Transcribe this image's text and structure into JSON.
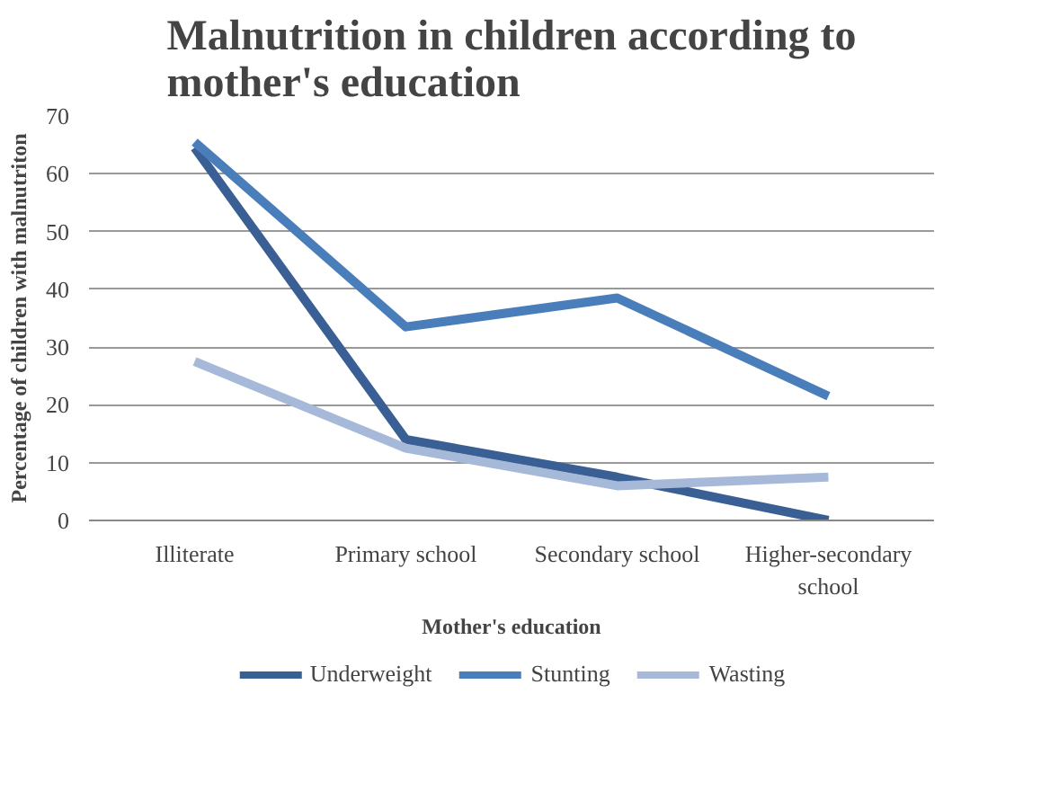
{
  "chart_data": {
    "type": "line",
    "title": "Malnutrition in children according to mother's education",
    "xlabel": "Mother's education",
    "ylabel": "Percentage of children with malnutriton",
    "categories": [
      "Illiterate",
      "Primary school",
      "Secondary school",
      "Higher-secondary school"
    ],
    "series": [
      {
        "name": "Underweight",
        "color": "#3a5f94",
        "values": [
          64.5,
          14,
          7.5,
          0
        ]
      },
      {
        "name": "Stunting",
        "color": "#4a7ebb",
        "values": [
          65.5,
          33.5,
          38.5,
          21.5
        ]
      },
      {
        "name": "Wasting",
        "color": "#a7b9d9",
        "values": [
          27.5,
          12.5,
          6,
          7.5
        ]
      }
    ],
    "ylim": [
      0,
      70
    ],
    "yticks": [
      0,
      10,
      20,
      30,
      40,
      50,
      60,
      70
    ],
    "grid": "y",
    "legend": "bottom"
  }
}
